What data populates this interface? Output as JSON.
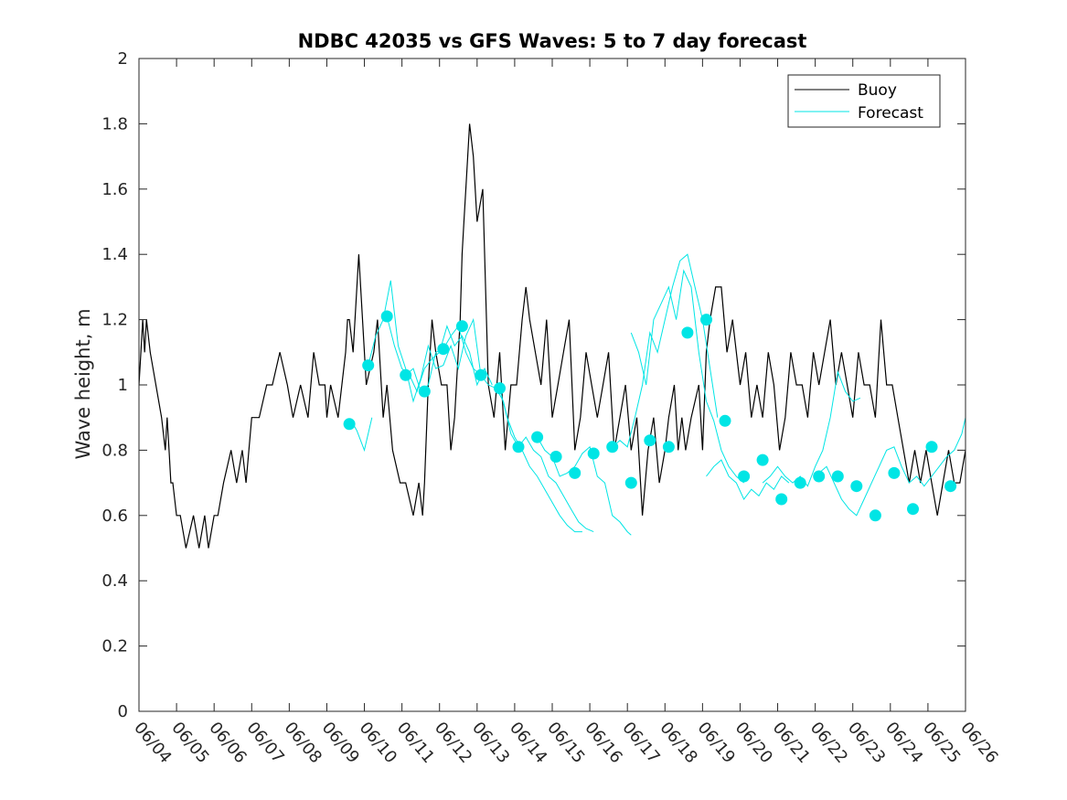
{
  "chart_data": {
    "type": "line",
    "title": "NDBC 42035 vs GFS Waves: 5 to 7 day forecast",
    "xlabel": "",
    "ylabel": "Wave height, m",
    "xlim": [
      0,
      22
    ],
    "ylim": [
      0,
      2
    ],
    "x_ticks": [
      0,
      1,
      2,
      3,
      4,
      5,
      6,
      7,
      8,
      9,
      10,
      11,
      12,
      13,
      14,
      15,
      16,
      17,
      18,
      19,
      20,
      21,
      22
    ],
    "x_tick_labels": [
      "06/04",
      "06/05",
      "06/06",
      "06/07",
      "06/08",
      "06/09",
      "06/10",
      "06/11",
      "06/12",
      "06/13",
      "06/14",
      "06/15",
      "06/16",
      "06/17",
      "06/18",
      "06/19",
      "06/20",
      "06/21",
      "06/22",
      "06/23",
      "06/24",
      "06/25",
      "06/26"
    ],
    "y_ticks": [
      0,
      0.2,
      0.4,
      0.6,
      0.8,
      1,
      1.2,
      1.4,
      1.6,
      1.8,
      2
    ],
    "y_tick_labels": [
      "0",
      "0.2",
      "0.4",
      "0.6",
      "0.8",
      "1",
      "1.2",
      "1.4",
      "1.6",
      "1.8",
      "2"
    ],
    "grid": false,
    "legend": {
      "position": "top-right",
      "entries": [
        "Buoy",
        "Forecast"
      ]
    },
    "colors": {
      "buoy": "#000000",
      "forecast": "#00e5e5"
    },
    "series": [
      {
        "name": "Buoy",
        "x": [
          0,
          0.05,
          0.1,
          0.15,
          0.2,
          0.3,
          0.45,
          0.6,
          0.7,
          0.75,
          0.8,
          0.85,
          0.9,
          1,
          1.1,
          1.25,
          1.45,
          1.6,
          1.75,
          1.85,
          2,
          2.1,
          2.25,
          2.45,
          2.6,
          2.75,
          2.85,
          3,
          3.2,
          3.4,
          3.55,
          3.75,
          3.95,
          4.1,
          4.3,
          4.5,
          4.65,
          4.8,
          4.95,
          5,
          5.1,
          5.3,
          5.5,
          5.55,
          5.6,
          5.7,
          5.85,
          6.05,
          6.25,
          6.35,
          6.5,
          6.6,
          6.75,
          6.95,
          7.1,
          7.3,
          7.45,
          7.55,
          7.6,
          7.7,
          7.8,
          7.9,
          8.05,
          8.2,
          8.3,
          8.4,
          8.45,
          8.5,
          8.55,
          8.6,
          8.65,
          8.7,
          8.8,
          8.9,
          9,
          9.15,
          9.3,
          9.45,
          9.6,
          9.75,
          9.9,
          10.05,
          10.2,
          10.3,
          10.4,
          10.55,
          10.7,
          10.85,
          11,
          11.15,
          11.3,
          11.45,
          11.6,
          11.75,
          11.9,
          12.05,
          12.2,
          12.35,
          12.5,
          12.65,
          12.8,
          12.95,
          13.1,
          13.25,
          13.4,
          13.55,
          13.7,
          13.85,
          14,
          14.1,
          14.25,
          14.35,
          14.45,
          14.55,
          14.7,
          14.9,
          15,
          15.1,
          15.2,
          15.35,
          15.5,
          15.65,
          15.8,
          16,
          16.15,
          16.3,
          16.45,
          16.6,
          16.75,
          16.9,
          17.05,
          17.2,
          17.35,
          17.5,
          17.65,
          17.8,
          17.95,
          18.1,
          18.25,
          18.4,
          18.55,
          18.7,
          18.85,
          19,
          19.15,
          19.3,
          19.45,
          19.6,
          19.75,
          19.9,
          20.05,
          20.2,
          20.35,
          20.5,
          20.65,
          20.8,
          20.95,
          21.1,
          21.25,
          21.4,
          21.55,
          21.7,
          21.85,
          22
        ],
        "values": [
          1,
          1.1,
          1.2,
          1.1,
          1.2,
          1.1,
          1,
          0.9,
          0.8,
          0.9,
          0.8,
          0.7,
          0.7,
          0.6,
          0.6,
          0.5,
          0.6,
          0.5,
          0.6,
          0.5,
          0.6,
          0.6,
          0.7,
          0.8,
          0.7,
          0.8,
          0.7,
          0.9,
          0.9,
          1,
          1,
          1.1,
          1,
          0.9,
          1,
          0.9,
          1.1,
          1,
          1,
          0.9,
          1,
          0.9,
          1.1,
          1.2,
          1.2,
          1.1,
          1.4,
          1,
          1.1,
          1.2,
          0.9,
          1,
          0.8,
          0.7,
          0.7,
          0.6,
          0.7,
          0.6,
          0.7,
          1,
          1.2,
          1.1,
          1,
          1,
          0.8,
          0.9,
          1,
          1.1,
          1.2,
          1.4,
          1.5,
          1.6,
          1.8,
          1.7,
          1.5,
          1.6,
          1,
          0.9,
          1.1,
          0.8,
          1,
          1,
          1.2,
          1.3,
          1.2,
          1.1,
          1,
          1.2,
          0.9,
          1,
          1.1,
          1.2,
          0.8,
          0.9,
          1.1,
          1,
          0.9,
          1,
          1.1,
          0.8,
          0.9,
          1,
          0.8,
          0.9,
          0.6,
          0.8,
          0.9,
          0.7,
          0.8,
          0.9,
          1,
          0.8,
          0.9,
          0.8,
          0.9,
          1,
          0.8,
          1.1,
          1.2,
          1.3,
          1.3,
          1.1,
          1.2,
          1,
          1.1,
          0.9,
          1,
          0.9,
          1.1,
          1,
          0.8,
          0.9,
          1.1,
          1,
          1,
          0.9,
          1.1,
          1,
          1.1,
          1.2,
          1,
          1.1,
          1,
          0.9,
          1.1,
          1,
          1,
          0.9,
          1.2,
          1,
          1,
          0.9,
          0.8,
          0.7,
          0.8,
          0.7,
          0.8,
          0.7,
          0.6,
          0.7,
          0.8,
          0.7,
          0.7,
          0.8
        ]
      },
      {
        "name": "Forecast",
        "runs": [
          {
            "x": [
              5.7,
              5.8,
              5.9,
              6,
              6.2
            ],
            "values": [
              0.88,
              0.86,
              0.83,
              0.8,
              0.9
            ]
          },
          {
            "x": [
              6.1,
              6.3,
              6.5,
              6.7,
              6.9,
              7.1,
              7.3,
              7.5,
              7.7,
              7.9,
              8.1,
              8.3,
              8.5,
              8.7,
              8.9,
              9.1
            ],
            "values": [
              1.06,
              1.15,
              1.2,
              1.32,
              1.12,
              1.05,
              0.95,
              1.02,
              1.12,
              1.05,
              1.06,
              1.12,
              1.05,
              1.15,
              1.2,
              1.03
            ]
          },
          {
            "x": [
              6.6,
              6.8,
              7,
              7.2,
              7.4,
              7.6,
              7.8,
              8,
              8.2,
              8.4,
              8.6,
              8.8,
              9,
              9.2,
              9.4
            ],
            "values": [
              1.21,
              1.12,
              1.05,
              1.03,
              0.98,
              1.05,
              1.08,
              1.1,
              1.18,
              1.12,
              1.15,
              1.1,
              1.0,
              1.05,
              1.0
            ]
          },
          {
            "x": [
              7.1,
              7.3,
              7.5,
              7.7,
              7.9,
              8.1,
              8.3,
              8.5,
              8.7,
              8.9,
              9.1,
              9.3,
              9.5,
              9.7,
              9.9,
              10.1
            ],
            "values": [
              1.03,
              1.05,
              0.98,
              1.0,
              1.1,
              1.11,
              1.15,
              1.18,
              1.1,
              1.05,
              1.03,
              1.0,
              0.99,
              0.95,
              0.85,
              0.81
            ]
          },
          {
            "x": [
              9.6,
              9.8,
              10,
              10.2,
              10.4,
              10.6,
              10.8,
              11,
              11.2,
              11.4,
              11.6,
              11.8
            ],
            "values": [
              0.99,
              0.9,
              0.84,
              0.8,
              0.75,
              0.72,
              0.68,
              0.64,
              0.6,
              0.57,
              0.55,
              0.55
            ]
          },
          {
            "x": [
              10.1,
              10.3,
              10.5,
              10.7,
              10.9,
              11.1,
              11.3,
              11.5,
              11.7,
              11.9,
              12.1
            ],
            "values": [
              0.81,
              0.84,
              0.8,
              0.78,
              0.72,
              0.7,
              0.66,
              0.62,
              0.58,
              0.56,
              0.55
            ]
          },
          {
            "x": [
              10.6,
              10.8,
              11,
              11.2,
              11.4,
              11.6,
              11.8,
              12,
              12.2,
              12.4,
              12.6,
              12.8,
              13,
              13.1
            ],
            "values": [
              0.84,
              0.8,
              0.78,
              0.72,
              0.73,
              0.75,
              0.79,
              0.81,
              0.72,
              0.7,
              0.6,
              0.58,
              0.55,
              0.54
            ]
          },
          {
            "x": [
              12.6,
              12.8,
              13,
              13.2,
              13.4,
              13.6,
              13.8,
              14,
              14.2,
              14.4,
              14.6,
              14.8,
              15,
              15.2,
              15.4
            ],
            "values": [
              0.81,
              0.83,
              0.81,
              0.9,
              1.0,
              1.16,
              1.1,
              1.2,
              1.3,
              1.38,
              1.4,
              1.3,
              1.2,
              1.05,
              0.9
            ]
          },
          {
            "x": [
              13.1,
              13.3,
              13.5,
              13.7,
              13.9,
              14.1,
              14.3,
              14.5,
              14.7,
              14.9,
              15.1,
              15.3,
              15.5,
              15.7,
              15.9,
              16.1
            ],
            "values": [
              1.16,
              1.1,
              1.0,
              1.2,
              1.25,
              1.3,
              1.2,
              1.35,
              1.3,
              1.1,
              0.95,
              0.89,
              0.8,
              0.75,
              0.72,
              0.7
            ]
          },
          {
            "x": [
              15.1,
              15.3,
              15.5,
              15.7,
              15.9,
              16.1,
              16.3,
              16.5,
              16.7,
              16.9,
              17.1,
              17.3
            ],
            "values": [
              0.72,
              0.75,
              0.77,
              0.72,
              0.7,
              0.65,
              0.68,
              0.66,
              0.7,
              0.68,
              0.72,
              0.7
            ]
          },
          {
            "x": [
              16.6,
              16.8,
              17,
              17.2,
              17.4,
              17.6,
              17.8,
              18,
              18.2,
              18.4,
              18.6,
              18.8,
              19,
              19.2
            ],
            "values": [
              0.7,
              0.72,
              0.75,
              0.72,
              0.7,
              0.72,
              0.69,
              0.75,
              0.8,
              0.9,
              1.04,
              0.98,
              0.95,
              0.96
            ]
          },
          {
            "x": [
              18.1,
              18.3,
              18.5,
              18.7,
              18.9,
              19.1,
              19.3,
              19.5,
              19.7,
              19.9,
              20.1,
              20.3,
              20.5,
              20.7,
              20.9,
              21.1,
              21.3,
              21.5,
              21.7,
              21.9,
              22
            ],
            "values": [
              0.73,
              0.75,
              0.7,
              0.65,
              0.62,
              0.6,
              0.65,
              0.7,
              0.75,
              0.8,
              0.81,
              0.75,
              0.7,
              0.72,
              0.69,
              0.72,
              0.75,
              0.78,
              0.8,
              0.85,
              0.9
            ]
          }
        ],
        "markers": {
          "x": [
            5.6,
            6.1,
            6.6,
            7.1,
            7.6,
            8.1,
            8.6,
            9.1,
            9.6,
            10.1,
            10.6,
            11.1,
            11.6,
            12.1,
            12.6,
            13.1,
            13.6,
            14.1,
            14.6,
            15.1,
            15.6,
            16.1,
            16.6,
            17.1,
            17.6,
            18.1,
            18.6,
            19.1,
            19.6,
            20.1,
            20.6,
            21.1,
            21.6
          ],
          "values": [
            0.88,
            1.06,
            1.21,
            1.03,
            0.98,
            1.11,
            1.18,
            1.03,
            0.99,
            0.81,
            0.84,
            0.78,
            0.73,
            0.79,
            0.81,
            0.7,
            0.83,
            0.81,
            1.16,
            1.2,
            0.89,
            0.72,
            0.77,
            0.65,
            0.7,
            0.72,
            0.72,
            0.69,
            0.6,
            0.73,
            0.62,
            0.81,
            0.69
          ]
        }
      }
    ]
  }
}
